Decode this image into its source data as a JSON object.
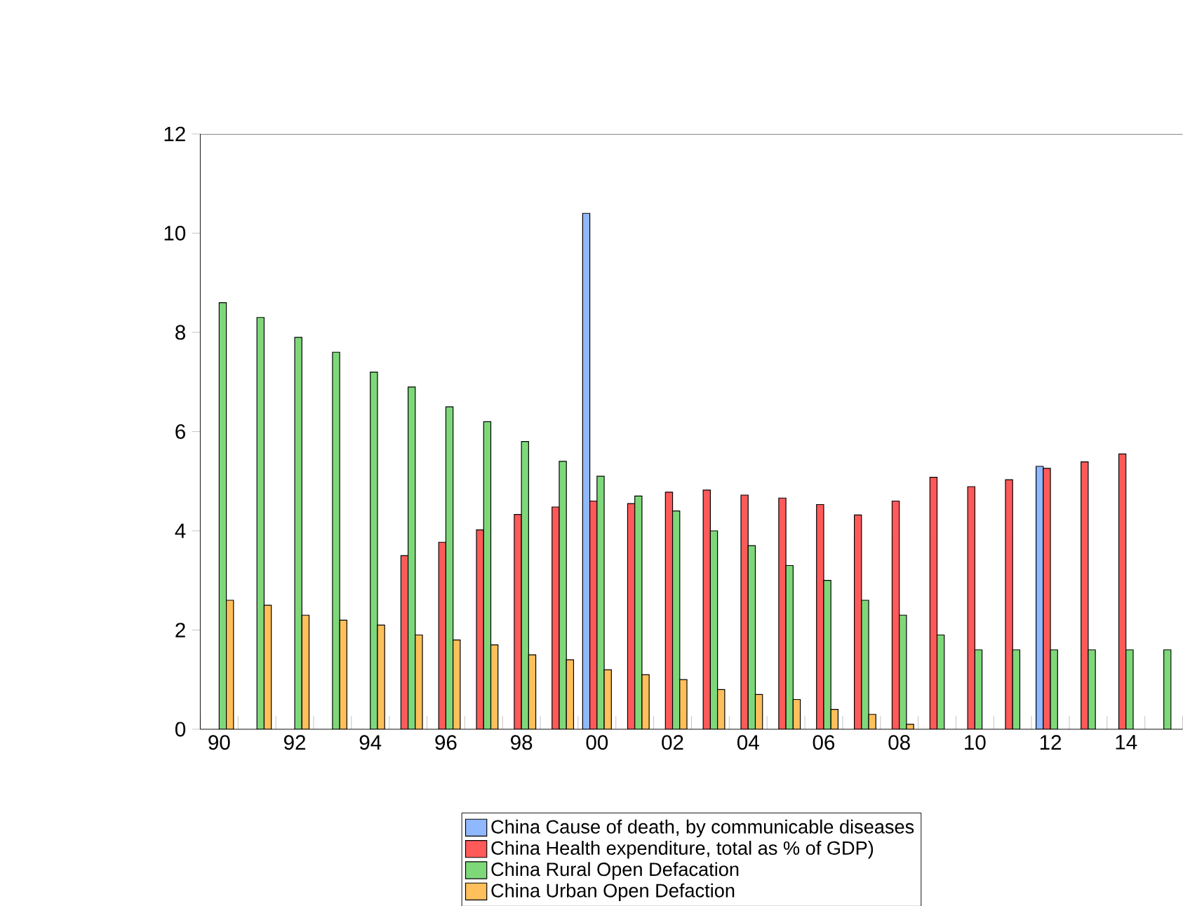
{
  "chart_data": {
    "type": "bar",
    "categories": [
      "90",
      null,
      "92",
      null,
      "94",
      null,
      "96",
      null,
      "98",
      null,
      "00",
      null,
      "02",
      null,
      "04",
      null,
      "06",
      null,
      "08",
      null,
      "10",
      null,
      "12",
      null,
      "14",
      null
    ],
    "series": [
      {
        "name": "China Cause of death, by communicable diseases",
        "color": "#8fb8ff",
        "values": [
          null,
          null,
          null,
          null,
          null,
          null,
          null,
          null,
          null,
          null,
          10.4,
          null,
          null,
          null,
          null,
          null,
          null,
          null,
          null,
          null,
          null,
          null,
          5.3,
          null,
          null,
          null
        ]
      },
      {
        "name": "China Health expenditure, total  as % of GDP)",
        "color": "#ff5a5a",
        "values": [
          null,
          null,
          null,
          null,
          null,
          3.5,
          3.77,
          4.02,
          4.33,
          4.48,
          4.6,
          4.55,
          4.78,
          4.82,
          4.72,
          4.66,
          4.53,
          4.32,
          4.6,
          5.08,
          4.89,
          5.03,
          5.26,
          5.39,
          5.55,
          null
        ]
      },
      {
        "name": "China Rural Open Defacation",
        "color": "#7ed87a",
        "values": [
          8.6,
          8.3,
          7.9,
          7.6,
          7.2,
          6.9,
          6.5,
          6.2,
          5.8,
          5.4,
          5.1,
          4.7,
          4.4,
          4.0,
          3.7,
          3.3,
          3.0,
          2.6,
          2.3,
          1.9,
          1.6,
          1.6,
          1.6,
          1.6,
          1.6,
          1.6
        ]
      },
      {
        "name": "China Urban Open Defaction",
        "color": "#ffbf5a",
        "values": [
          2.6,
          2.5,
          2.3,
          2.2,
          2.1,
          1.9,
          1.8,
          1.7,
          1.5,
          1.4,
          1.2,
          1.1,
          1.0,
          0.8,
          0.7,
          0.6,
          0.4,
          0.3,
          0.1,
          null,
          null,
          null,
          null,
          null,
          null,
          null
        ]
      }
    ],
    "ylim": [
      0,
      12
    ],
    "yticks": [
      0,
      2,
      4,
      6,
      8,
      10,
      12
    ],
    "grid": false,
    "legend": "bottom"
  }
}
